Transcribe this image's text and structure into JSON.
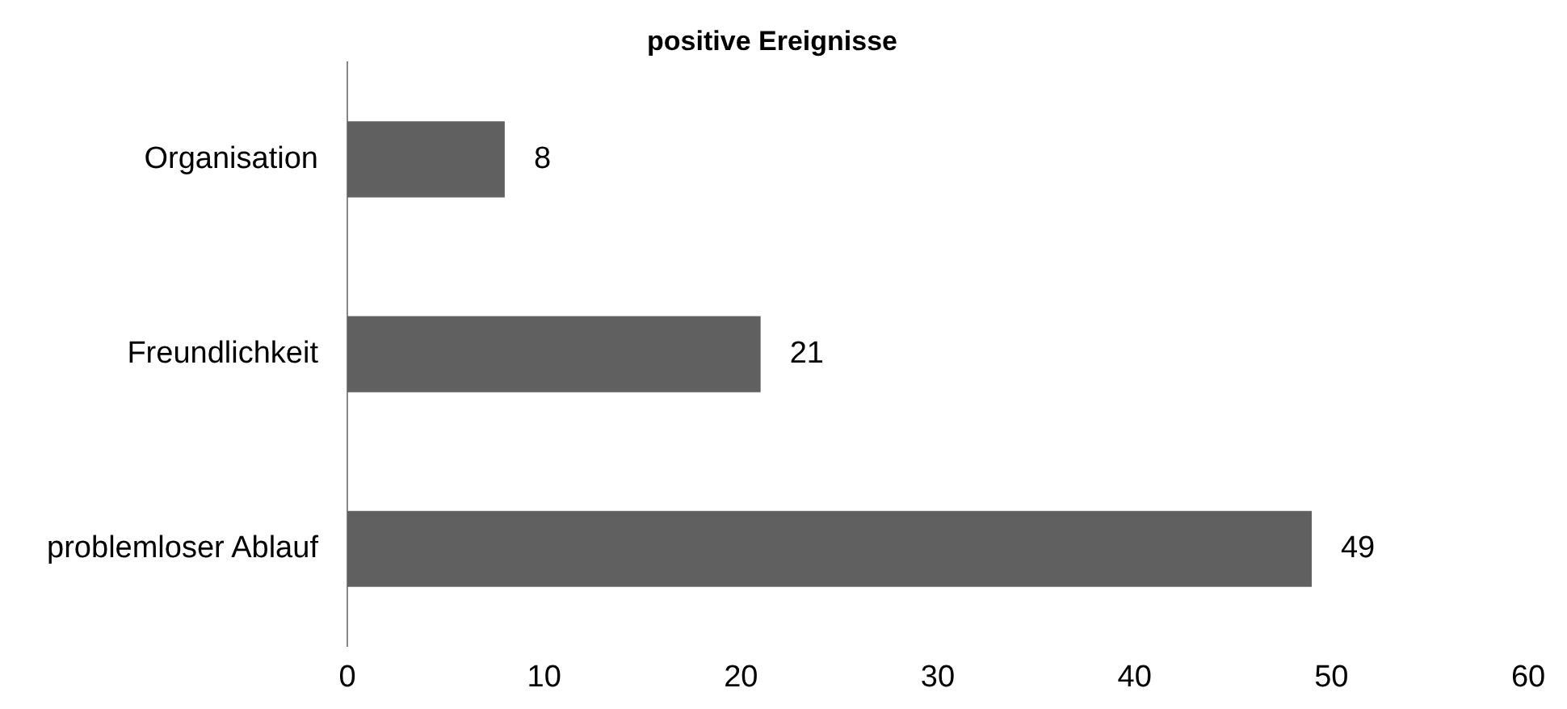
{
  "chart_data": {
    "type": "bar",
    "orientation": "horizontal",
    "title": "positive Ereignisse",
    "categories": [
      "Organisation",
      "Freundlichkeit",
      "problemloser Ablauf"
    ],
    "values": [
      8,
      21,
      49
    ],
    "color": "#606060",
    "xlim": [
      0,
      60
    ],
    "xticks": [
      0,
      10,
      20,
      30,
      40,
      50,
      60
    ],
    "data_labels": true,
    "grid": false,
    "legend": false
  }
}
